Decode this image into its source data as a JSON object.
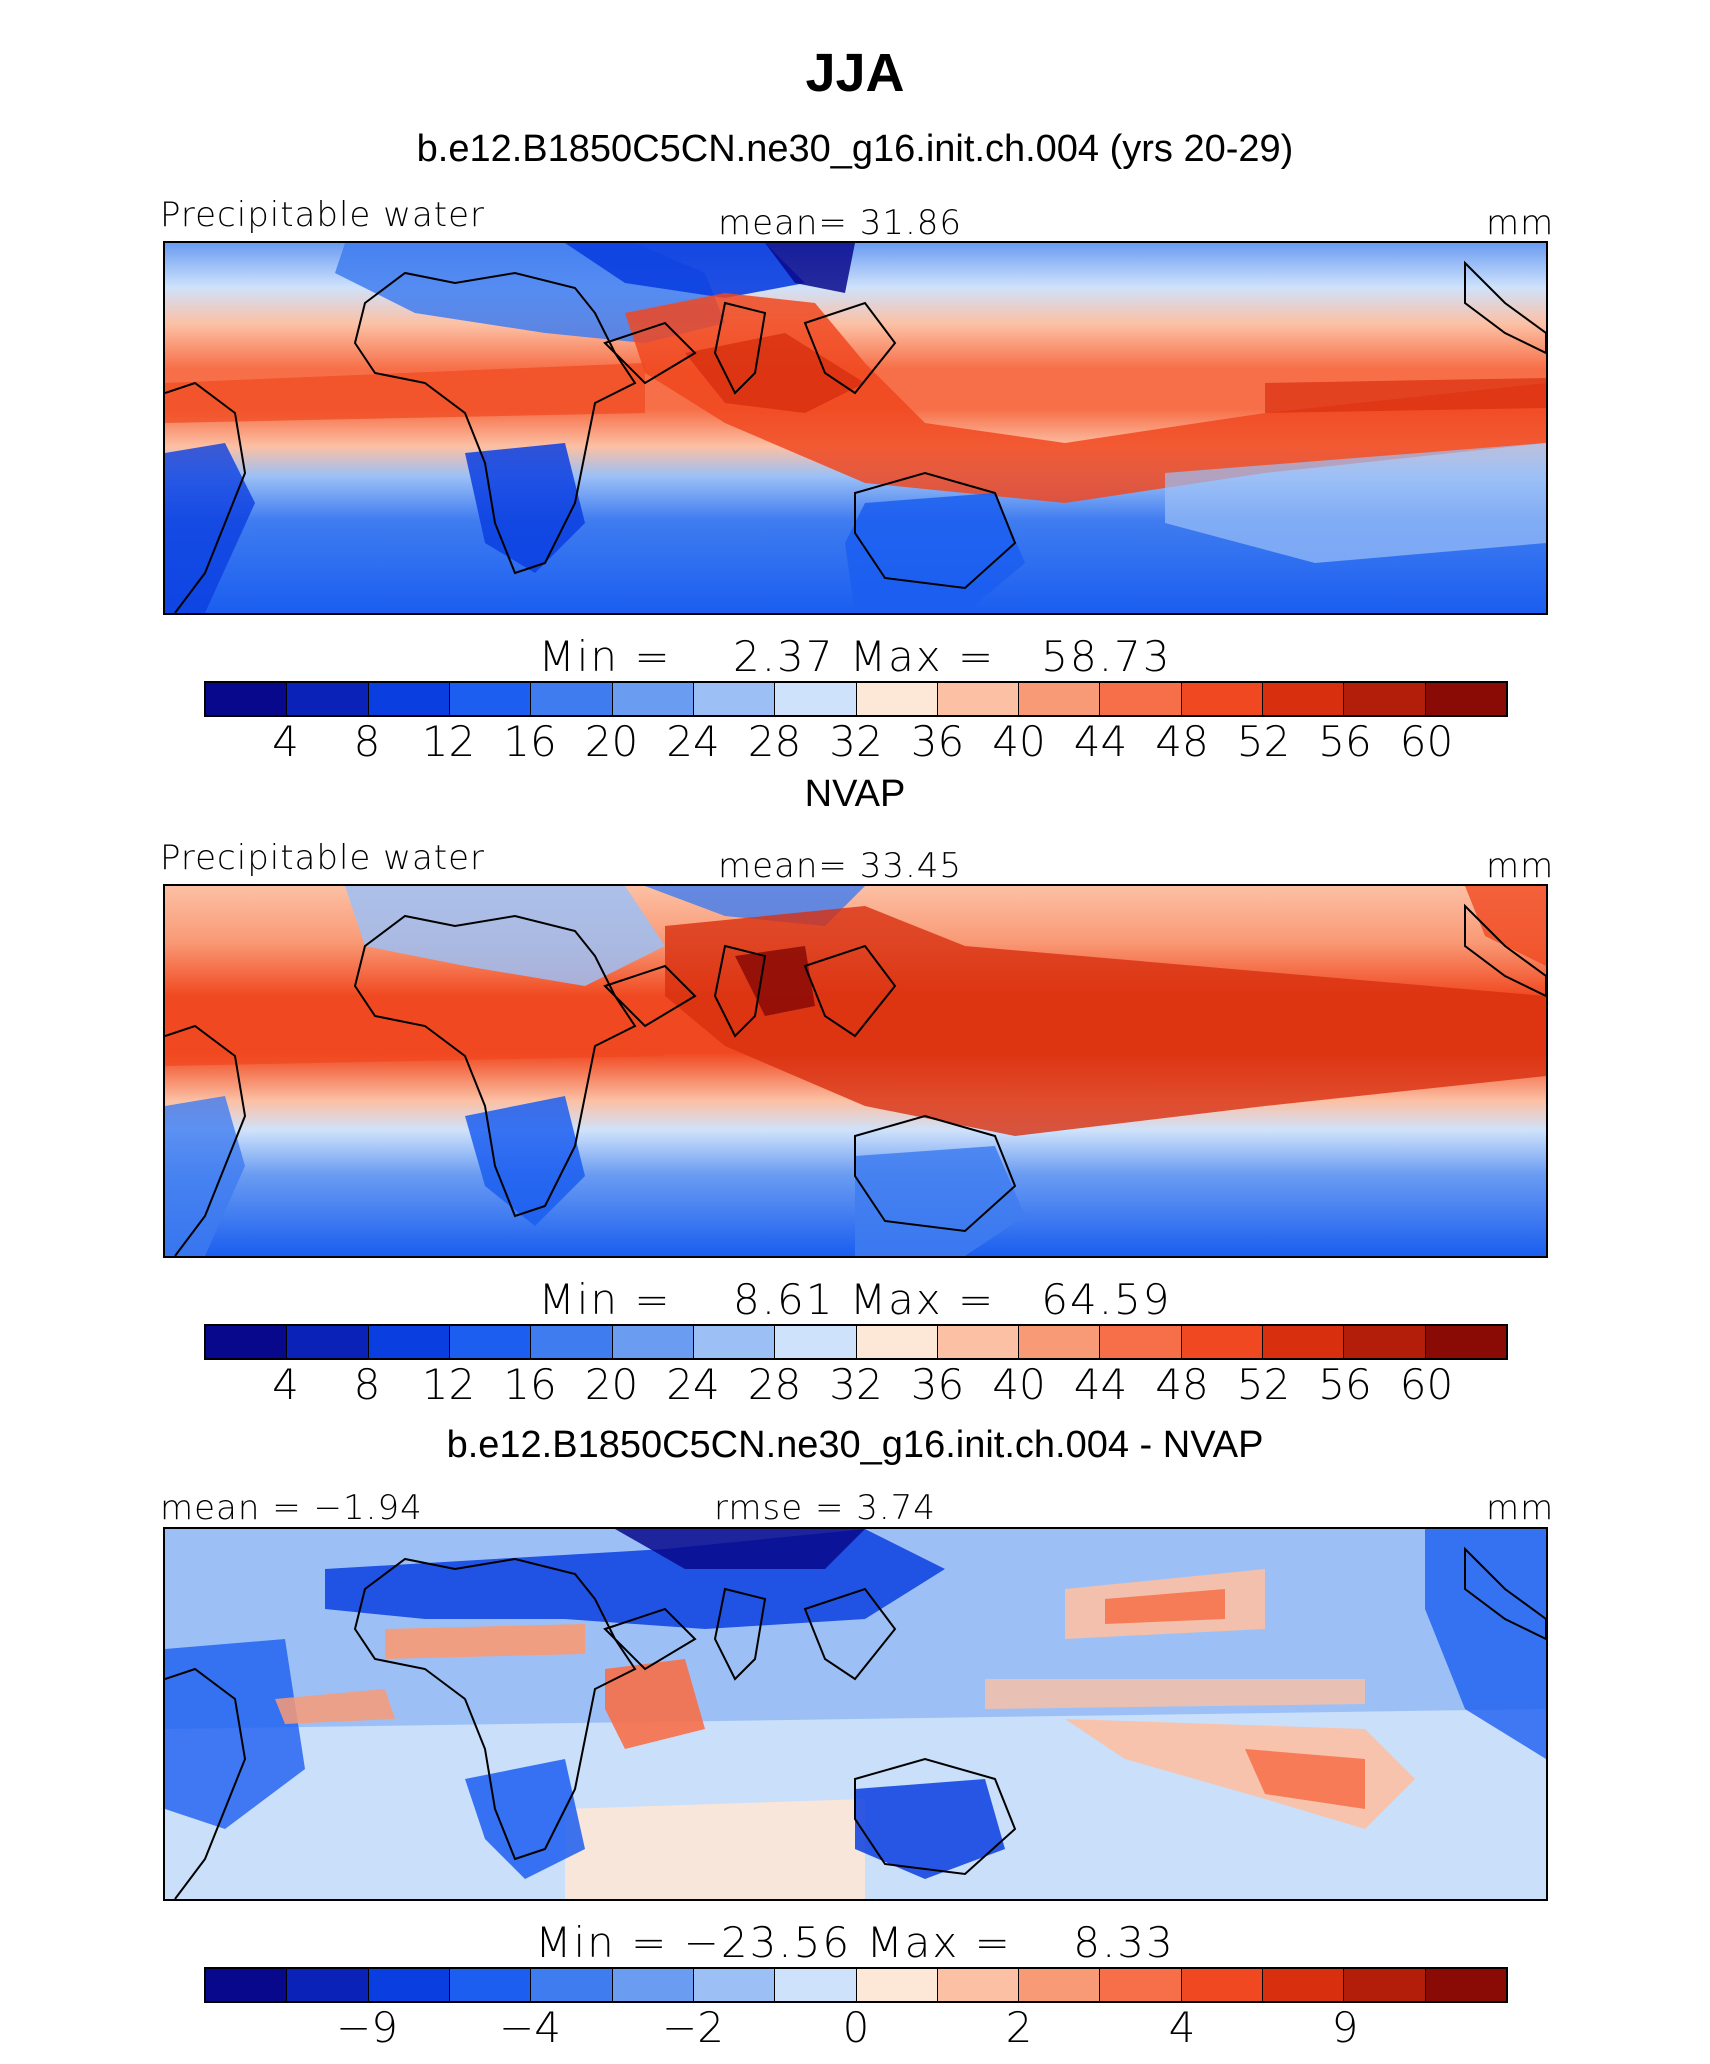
{
  "title": "JJA",
  "palette": [
    "#08088c",
    "#0a22b8",
    "#0b3ee0",
    "#1b5ef0",
    "#3f7cf0",
    "#6a9cf2",
    "#9cc0f6",
    "#cfe2fb",
    "#fde7d6",
    "#fcc0a4",
    "#f99a76",
    "#f76f48",
    "#f04820",
    "#d82f0f",
    "#b21e0a",
    "#8a0a06"
  ],
  "panels": [
    {
      "title": "b.e12.B1850C5CN.ne30_g16.init.ch.004 (yrs 20-29)",
      "left_label": "Precipitable water",
      "center_label": "mean=   31.86",
      "right_label": "mm",
      "minmax": "Min =    2.37 Max =   58.73",
      "ticks": [
        "4",
        "8",
        "12",
        "16",
        "20",
        "24",
        "28",
        "32",
        "36",
        "40",
        "44",
        "48",
        "52",
        "56",
        "60"
      ],
      "map_style": "model"
    },
    {
      "title": "NVAP",
      "left_label": "Precipitable water",
      "center_label": "mean=   33.45",
      "right_label": "mm",
      "minmax": "Min =    8.61 Max =   64.59",
      "ticks": [
        "4",
        "8",
        "12",
        "16",
        "20",
        "24",
        "28",
        "32",
        "36",
        "40",
        "44",
        "48",
        "52",
        "56",
        "60"
      ],
      "map_style": "obs"
    },
    {
      "title": "b.e12.B1850C5CN.ne30_g16.init.ch.004 - NVAP",
      "left_label": "mean =  −1.94",
      "center_label": "rmse =    3.74",
      "right_label": "mm",
      "minmax": "Min = −23.56 Max =    8.33",
      "ticks": [
        "−9",
        "−4",
        "−2",
        "0",
        "2",
        "4",
        "9"
      ],
      "tick_slots": [
        2,
        4,
        6,
        8,
        10,
        12,
        14
      ],
      "map_style": "diff"
    }
  ]
}
